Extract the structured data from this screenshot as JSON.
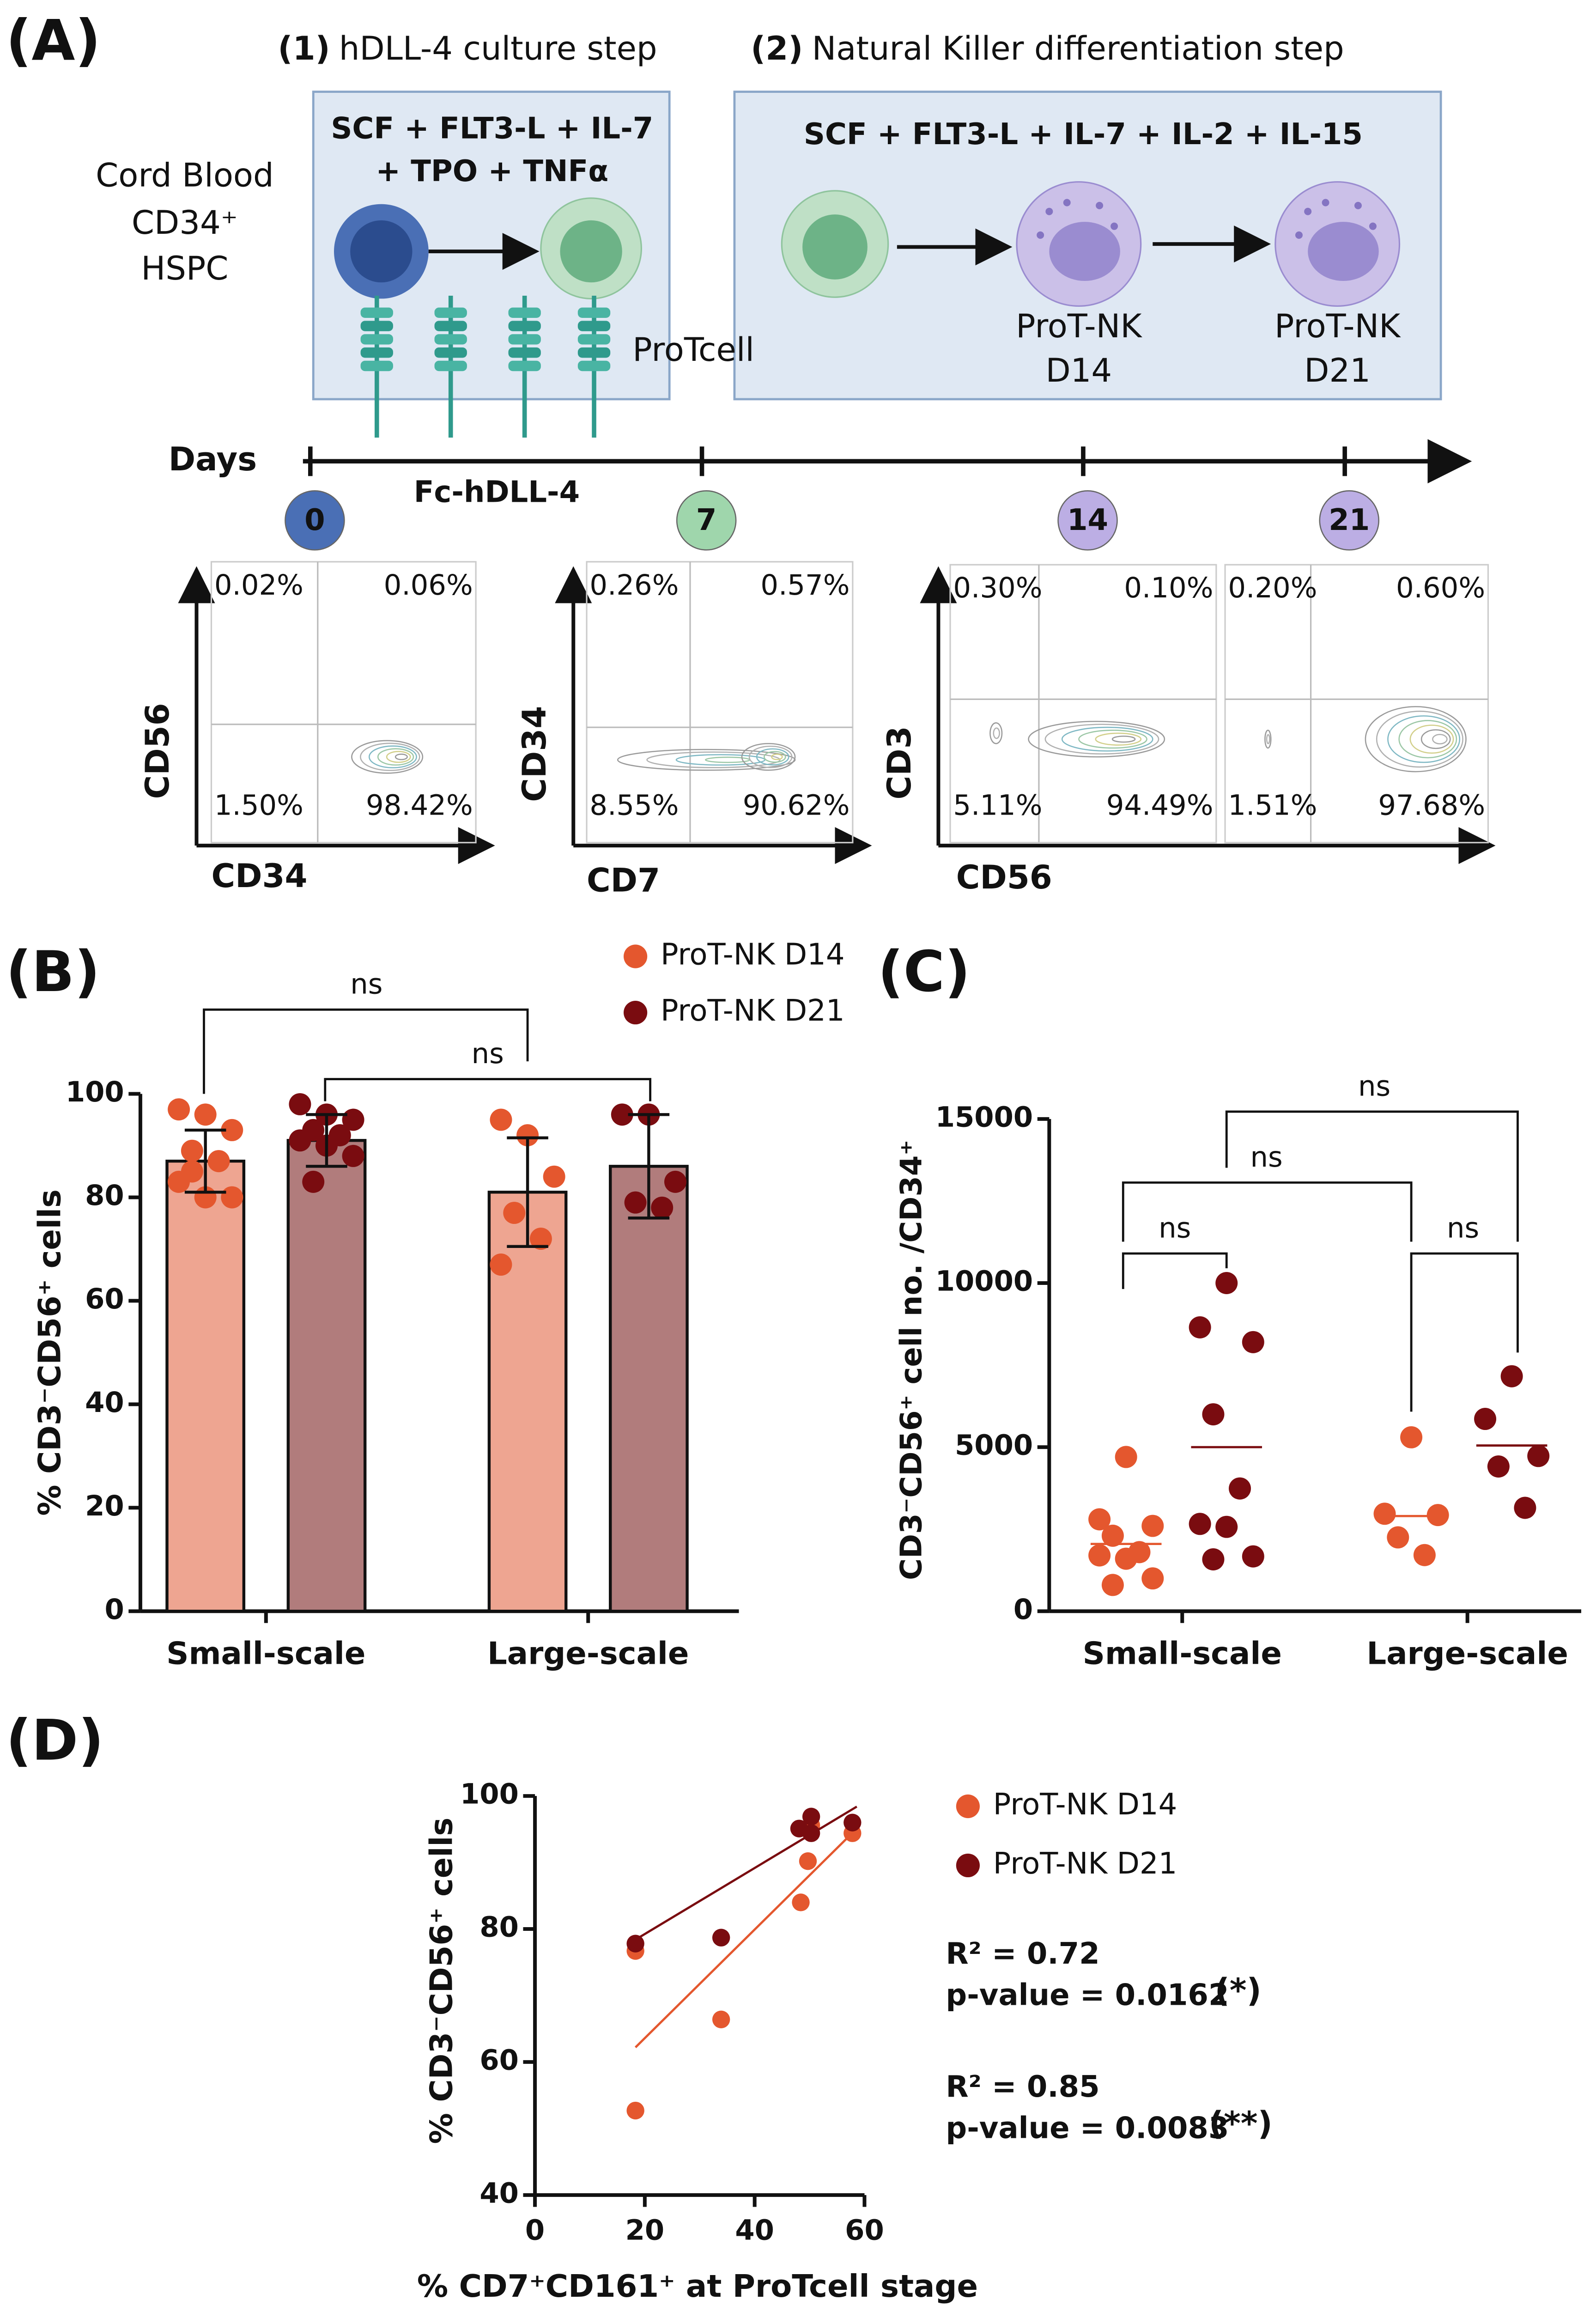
{
  "panel_a": {
    "panel": "(A)",
    "step1_number": "(1)",
    "step1_label": "hDLL-4 culture step",
    "step2_number": "(2)",
    "step2_label": "Natural Killer differentiation step",
    "box1_lines": [
      "SCF + FLT3-L + IL-7",
      "+ TPO + TNFα"
    ],
    "box2_line": "SCF + FLT3-L + IL-7 + IL-2 + IL-15",
    "source_lines": [
      "Cord Blood",
      "CD34⁺",
      "HSPC"
    ],
    "protcell": "ProTcell",
    "nk_cells": [
      {
        "name": "ProT-NK",
        "day": "D14"
      },
      {
        "name": "ProT-NK",
        "day": "D21"
      }
    ],
    "days_label": "Days",
    "coating": "Fc-hDLL-4",
    "days": [
      "0",
      "7",
      "14",
      "21"
    ],
    "flow_panels": [
      {
        "ylabel": "CD56",
        "xlabel": "CD34",
        "plots": [
          {
            "quadrants": [
              "0.02%",
              "0.06%",
              "1.50%",
              "98.42%"
            ]
          }
        ]
      },
      {
        "ylabel": "CD34",
        "xlabel": "CD7",
        "plots": [
          {
            "quadrants": [
              "0.26%",
              "0.57%",
              "8.55%",
              "90.62%"
            ]
          }
        ]
      },
      {
        "ylabel": "CD3",
        "xlabel": "CD56",
        "plots": [
          {
            "quadrants": [
              "0.30%",
              "0.10%",
              "5.11%",
              "94.49%"
            ]
          },
          {
            "quadrants": [
              "0.20%",
              "0.60%",
              "1.51%",
              "97.68%"
            ]
          }
        ]
      }
    ]
  },
  "chart_data": [
    {
      "type": "bar",
      "panel": "(B)",
      "ylabel": "% CD3⁻CD56⁺ cells",
      "categories": [
        "Small-scale",
        "Large-scale"
      ],
      "ylim": [
        0,
        100
      ],
      "yticks": [
        0,
        20,
        40,
        60,
        80,
        100
      ],
      "annotations": [
        "ns",
        "ns"
      ],
      "series": [
        {
          "name": "ProT-NK D14",
          "color": "#e4572e",
          "bar_color": "#eea591",
          "values": [
            87,
            81
          ],
          "sd": [
            6,
            10.5
          ],
          "points": [
            [
              96,
              97,
              93,
              89,
              87,
              83,
              80,
              80,
              85
            ],
            [
              92,
              95,
              84,
              77,
              72,
              67
            ]
          ]
        },
        {
          "name": "ProT-NK D21",
          "color": "#7a0c10",
          "bar_color": "#b17c7c",
          "values": [
            91,
            86
          ],
          "sd": [
            5,
            10
          ],
          "points": [
            [
              96,
              98,
              95,
              93,
              92,
              91,
              90,
              88,
              83
            ],
            [
              96,
              96,
              83,
              79,
              78
            ]
          ]
        }
      ]
    },
    {
      "type": "dot",
      "panel": "(C)",
      "ylabel": "CD3⁻CD56⁺ cell no. /CD34⁺",
      "categories": [
        "Small-scale",
        "Large-scale"
      ],
      "ylim": [
        0,
        15000
      ],
      "yticks": [
        0,
        5000,
        10000,
        15000
      ],
      "annotations": [
        "ns",
        "ns",
        "ns",
        "ns"
      ],
      "series": [
        {
          "name": "ProT-NK D14",
          "color": "#e4572e",
          "center": [
            2050,
            2900
          ],
          "points": [
            [
              4700,
              2800,
              2600,
              2300,
              1800,
              1700,
              1600,
              1000,
              800
            ],
            [
              5300,
              2970,
              2930,
              2250,
              1710
            ]
          ]
        },
        {
          "name": "ProT-NK D21",
          "color": "#7a0c10",
          "center": [
            5000,
            5050
          ],
          "points": [
            [
              10000,
              8650,
              8200,
              6000,
              3740,
              2660,
              2570,
              1670,
              1580
            ],
            [
              7160,
              5860,
              4730,
              4410,
              3150
            ]
          ]
        }
      ]
    },
    {
      "type": "scatter",
      "panel": "(D)",
      "xlabel": "% CD7⁺CD161⁺ at ProTcell stage",
      "ylabel": "% CD3⁻CD56⁺ cells",
      "xlim": [
        0,
        60
      ],
      "xticks": [
        0,
        20,
        40,
        60
      ],
      "ylim": [
        40,
        100
      ],
      "yticks": [
        40,
        60,
        80,
        100
      ],
      "series": [
        {
          "name": "ProT-NK D14",
          "color": "#e4572e",
          "x": [
            18.3,
            18.3,
            33.9,
            48.4,
            49.7,
            50.3,
            57.8
          ],
          "y": [
            76.7,
            52.7,
            66.4,
            84,
            90.2,
            95.6,
            94.4
          ],
          "fit": {
            "x": [
              18.3,
              58.6
            ],
            "y": [
              62.2,
              95.1
            ]
          },
          "stats": [
            "R² = 0.72",
            "p-value = 0.0162",
            "(*)"
          ]
        },
        {
          "name": "ProT-NK D21",
          "color": "#7a0c10",
          "x": [
            18.3,
            33.9,
            48.1,
            50.3,
            50.3,
            57.8
          ],
          "y": [
            77.8,
            78.7,
            95.1,
            96.9,
            94.4,
            96
          ],
          "fit": {
            "x": [
              18.3,
              58.6
            ],
            "y": [
              78.4,
              98.4
            ]
          },
          "stats": [
            "R² = 0.85",
            "p-value = 0.0083",
            "(**)"
          ]
        }
      ]
    }
  ]
}
